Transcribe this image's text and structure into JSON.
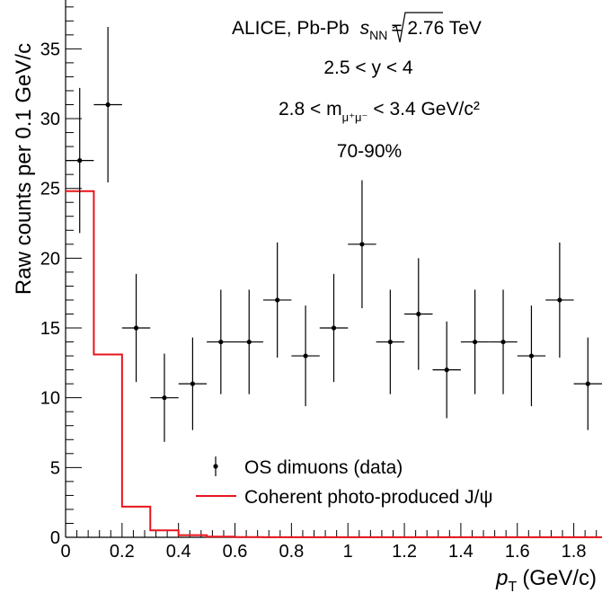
{
  "chart_data": {
    "type": "scatter",
    "ylabel": "Raw counts per 0.1 GeV/c",
    "xlabel_main": "p",
    "xlabel_sub": "T",
    "xlabel_unit": "(GeV/c)",
    "xlim": [
      0,
      1.9
    ],
    "ylim": [
      0,
      38.5
    ],
    "x_ticks": [
      "0",
      "0.2",
      "0.4",
      "0.6",
      "0.8",
      "1",
      "1.2",
      "1.4",
      "1.6",
      "1.8"
    ],
    "y_ticks": [
      "0",
      "5",
      "10",
      "15",
      "20",
      "25",
      "30",
      "35"
    ],
    "annotations": {
      "line1_prefix": "ALICE, Pb-Pb",
      "line1_s": "s",
      "line1_sub": "NN",
      "line1_suffix": "= 2.76 TeV",
      "line2": "2.5 < y < 4",
      "line3_prefix": "2.8 < m",
      "line3_sub": "μ⁺μ⁻",
      "line3_suffix": "< 3.4 GeV/c²",
      "line4": "70-90%"
    },
    "legend": {
      "data_label": "OS dimuons (data)",
      "model_label": "Coherent photo-produced J/ψ"
    },
    "series": [
      {
        "name": "OS dimuons (data)",
        "style": "points",
        "color": "#000000",
        "x": [
          0.05,
          0.15,
          0.25,
          0.35,
          0.45,
          0.55,
          0.65,
          0.75,
          0.85,
          0.95,
          1.05,
          1.15,
          1.25,
          1.35,
          1.45,
          1.55,
          1.65,
          1.75,
          1.85
        ],
        "y": [
          27,
          31,
          15,
          10,
          11,
          14,
          14,
          17,
          13,
          15,
          21,
          14,
          16,
          12,
          14,
          14,
          13,
          17,
          11
        ],
        "xerr": 0.05
      },
      {
        "name": "Coherent photo-produced J/ψ",
        "style": "step-histogram",
        "color": "#e8141c",
        "bin_edges": [
          0,
          0.1,
          0.2,
          0.3,
          0.4,
          0.5,
          0.6,
          0.7,
          0.8,
          0.9,
          1.0,
          1.1,
          1.2,
          1.3,
          1.4,
          1.5,
          1.6,
          1.7,
          1.8,
          1.9
        ],
        "values": [
          24.8,
          13.1,
          2.2,
          0.5,
          0.15,
          0.05,
          0.02,
          0.01,
          0.01,
          0.01,
          0.01,
          0.01,
          0.01,
          0.01,
          0.01,
          0.01,
          0.01,
          0.01,
          0.01
        ]
      }
    ]
  }
}
